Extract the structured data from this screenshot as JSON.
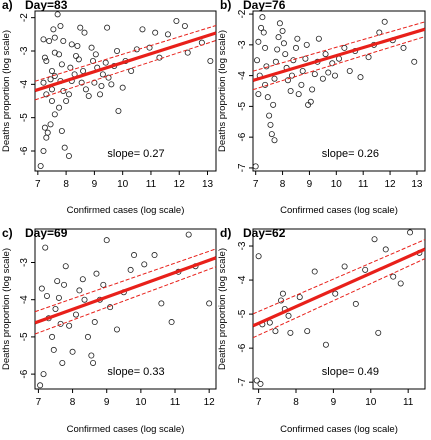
{
  "chart_data": [
    {
      "type": "scatter",
      "panel": "a)",
      "title": "Day=83",
      "xlabel": "Confirmed cases (log scale)",
      "ylabel": "Deaths proportion (log scale)",
      "xlim": [
        6.9,
        13.3
      ],
      "ylim": [
        -6.6,
        -1.8
      ],
      "xticks": [
        7,
        8,
        9,
        10,
        11,
        12,
        13
      ],
      "yticks": [
        -6,
        -5,
        -4,
        -3,
        -2
      ],
      "annotation": "slope=  0.27",
      "fit": {
        "intercept": -6.05,
        "slope": 0.27,
        "band": 0.28,
        "color": "#e8201a"
      },
      "points": [
        [
          7.1,
          -6.45
        ],
        [
          7.2,
          -6.0
        ],
        [
          7.3,
          -5.6
        ],
        [
          7.35,
          -5.45
        ],
        [
          7.25,
          -5.3
        ],
        [
          7.45,
          -5.2
        ],
        [
          7.6,
          -4.9
        ],
        [
          7.5,
          -4.5
        ],
        [
          7.3,
          -4.3
        ],
        [
          7.5,
          -4.15
        ],
        [
          7.2,
          -3.95
        ],
        [
          7.45,
          -3.85
        ],
        [
          7.5,
          -3.6
        ],
        [
          7.6,
          -3.75
        ],
        [
          7.3,
          -3.3
        ],
        [
          7.25,
          -3.2
        ],
        [
          7.6,
          -3.05
        ],
        [
          7.4,
          -2.7
        ],
        [
          7.2,
          -2.65
        ],
        [
          7.6,
          -2.6
        ],
        [
          7.55,
          -2.35
        ],
        [
          7.7,
          -1.9
        ],
        [
          7.8,
          -2.25
        ],
        [
          7.9,
          -2.7
        ],
        [
          7.75,
          -3.1
        ],
        [
          7.85,
          -3.4
        ],
        [
          7.8,
          -3.9
        ],
        [
          7.9,
          -4.2
        ],
        [
          8.0,
          -4.5
        ],
        [
          7.75,
          -4.7
        ],
        [
          7.85,
          -5.4
        ],
        [
          7.95,
          -5.9
        ],
        [
          8.1,
          -6.15
        ],
        [
          8.1,
          -4.3
        ],
        [
          8.2,
          -3.9
        ],
        [
          8.3,
          -3.7
        ],
        [
          8.15,
          -3.5
        ],
        [
          8.35,
          -3.15
        ],
        [
          8.2,
          -2.8
        ],
        [
          8.4,
          -2.85
        ],
        [
          8.5,
          -2.3
        ],
        [
          8.45,
          -3.25
        ],
        [
          8.6,
          -3.6
        ],
        [
          8.55,
          -3.95
        ],
        [
          8.7,
          -4.15
        ],
        [
          8.8,
          -4.35
        ],
        [
          8.65,
          -2.45
        ],
        [
          8.9,
          -2.9
        ],
        [
          8.95,
          -3.3
        ],
        [
          9.05,
          -3.1
        ],
        [
          9.1,
          -3.5
        ],
        [
          9.0,
          -3.95
        ],
        [
          9.2,
          -4.3
        ],
        [
          9.25,
          -4.05
        ],
        [
          9.3,
          -3.7
        ],
        [
          9.4,
          -3.35
        ],
        [
          9.45,
          -2.3
        ],
        [
          9.5,
          -3.8
        ],
        [
          9.6,
          -4.0
        ],
        [
          9.7,
          -3.45
        ],
        [
          9.8,
          -3.0
        ],
        [
          9.85,
          -4.8
        ],
        [
          10.0,
          -4.1
        ],
        [
          10.1,
          -3.3
        ],
        [
          10.3,
          -3.6
        ],
        [
          10.5,
          -2.95
        ],
        [
          10.7,
          -2.35
        ],
        [
          10.95,
          -2.9
        ],
        [
          11.15,
          -2.45
        ],
        [
          11.3,
          -3.2
        ],
        [
          11.6,
          -2.5
        ],
        [
          11.9,
          -2.1
        ],
        [
          12.2,
          -2.25
        ],
        [
          12.3,
          -3.05
        ],
        [
          12.8,
          -2.75
        ],
        [
          13.1,
          -3.3
        ]
      ]
    },
    {
      "type": "scatter",
      "panel": "b)",
      "title": "Day=76",
      "xlabel": "Confirmed cases (log scale)",
      "ylabel": "Deaths proportion (log scale)",
      "xlim": [
        6.9,
        13.3
      ],
      "ylim": [
        -7.1,
        -1.9
      ],
      "xticks": [
        7,
        8,
        9,
        10,
        11,
        12,
        13
      ],
      "yticks": [
        -7,
        -6,
        -5,
        -4,
        -3,
        -2
      ],
      "annotation": "slope=  0.26",
      "fit": {
        "intercept": -5.95,
        "slope": 0.26,
        "band": 0.3,
        "color": "#e8201a"
      },
      "points": [
        [
          7.0,
          -6.95
        ],
        [
          7.1,
          -4.6
        ],
        [
          7.15,
          -4.0
        ],
        [
          7.05,
          -3.5
        ],
        [
          7.1,
          -2.9
        ],
        [
          7.2,
          -2.45
        ],
        [
          7.25,
          -2.1
        ],
        [
          7.3,
          -2.6
        ],
        [
          7.35,
          -3.1
        ],
        [
          7.4,
          -3.7
        ],
        [
          7.35,
          -4.3
        ],
        [
          7.45,
          -4.7
        ],
        [
          7.5,
          -5.3
        ],
        [
          7.55,
          -5.6
        ],
        [
          7.6,
          -5.9
        ],
        [
          7.7,
          -6.1
        ],
        [
          7.65,
          -4.95
        ],
        [
          7.7,
          -4.1
        ],
        [
          7.75,
          -3.55
        ],
        [
          7.8,
          -3.15
        ],
        [
          7.85,
          -2.75
        ],
        [
          7.9,
          -2.3
        ],
        [
          8.0,
          -2.55
        ],
        [
          8.05,
          -2.95
        ],
        [
          8.1,
          -3.3
        ],
        [
          8.15,
          -3.75
        ],
        [
          8.2,
          -4.15
        ],
        [
          8.3,
          -4.5
        ],
        [
          8.35,
          -4.0
        ],
        [
          8.4,
          -3.5
        ],
        [
          8.5,
          -3.1
        ],
        [
          8.55,
          -2.8
        ],
        [
          8.6,
          -4.6
        ],
        [
          8.7,
          -4.3
        ],
        [
          8.75,
          -3.85
        ],
        [
          8.85,
          -3.45
        ],
        [
          8.9,
          -3.0
        ],
        [
          8.95,
          -4.95
        ],
        [
          9.05,
          -4.85
        ],
        [
          9.1,
          -4.45
        ],
        [
          9.2,
          -3.95
        ],
        [
          9.3,
          -3.55
        ],
        [
          9.35,
          -2.8
        ],
        [
          9.5,
          -4.1
        ],
        [
          9.6,
          -3.3
        ],
        [
          9.7,
          -3.9
        ],
        [
          9.85,
          -3.6
        ],
        [
          9.95,
          -4.0
        ],
        [
          10.1,
          -3.45
        ],
        [
          10.3,
          -3.1
        ],
        [
          10.5,
          -3.85
        ],
        [
          10.7,
          -3.2
        ],
        [
          10.9,
          -4.05
        ],
        [
          11.2,
          -3.4
        ],
        [
          11.4,
          -3.0
        ],
        [
          11.6,
          -2.6
        ],
        [
          11.8,
          -2.25
        ],
        [
          12.1,
          -2.85
        ],
        [
          12.5,
          -3.1
        ],
        [
          12.9,
          -3.55
        ]
      ]
    },
    {
      "type": "scatter",
      "panel": "c)",
      "title": "Day=69",
      "xlabel": "Confirmed cases (log scale)",
      "ylabel": "Deaths proportion (log scale)",
      "xlim": [
        6.9,
        12.2
      ],
      "ylim": [
        -6.4,
        -2.1
      ],
      "xticks": [
        7,
        8,
        9,
        10,
        11,
        12
      ],
      "yticks": [
        -6,
        -5,
        -4,
        -3
      ],
      "annotation": "slope=  0.33",
      "fit": {
        "intercept": -6.9,
        "slope": 0.33,
        "band": 0.3,
        "color": "#e8201a"
      },
      "points": [
        [
          7.05,
          -6.3
        ],
        [
          7.15,
          -6.0
        ],
        [
          7.1,
          -3.7
        ],
        [
          7.2,
          -2.6
        ],
        [
          7.25,
          -3.9
        ],
        [
          7.3,
          -4.5
        ],
        [
          7.4,
          -5.0
        ],
        [
          7.45,
          -5.35
        ],
        [
          7.5,
          -4.25
        ],
        [
          7.55,
          -3.5
        ],
        [
          7.6,
          -3.95
        ],
        [
          7.65,
          -4.65
        ],
        [
          7.7,
          -5.7
        ],
        [
          7.75,
          -3.6
        ],
        [
          7.8,
          -3.1
        ],
        [
          7.9,
          -4.7
        ],
        [
          8.0,
          -5.4
        ],
        [
          8.1,
          -4.4
        ],
        [
          8.2,
          -3.75
        ],
        [
          8.3,
          -3.45
        ],
        [
          8.35,
          -4.0
        ],
        [
          8.45,
          -5.0
        ],
        [
          8.55,
          -5.5
        ],
        [
          8.6,
          -5.7
        ],
        [
          8.65,
          -4.6
        ],
        [
          8.7,
          -3.3
        ],
        [
          8.8,
          -4.0
        ],
        [
          8.9,
          -3.6
        ],
        [
          9.0,
          -2.4
        ],
        [
          9.1,
          -4.2
        ],
        [
          9.3,
          -4.8
        ],
        [
          9.5,
          -3.8
        ],
        [
          9.7,
          -3.2
        ],
        [
          9.8,
          -2.8
        ],
        [
          10.1,
          -3.05
        ],
        [
          10.4,
          -2.8
        ],
        [
          10.6,
          -4.1
        ],
        [
          10.9,
          -4.6
        ],
        [
          11.1,
          -3.25
        ],
        [
          11.4,
          -2.25
        ],
        [
          11.6,
          -3.1
        ],
        [
          12.0,
          -4.1
        ]
      ]
    },
    {
      "type": "scatter",
      "panel": "d)",
      "title": "Day=62",
      "xlabel": "Confirmed cases (log scale)",
      "ylabel": "Deaths proportion (log scale)",
      "xlim": [
        6.85,
        11.45
      ],
      "ylim": [
        -7.2,
        -2.5
      ],
      "xticks": [
        7,
        8,
        9,
        10,
        11
      ],
      "yticks": [
        -7,
        -6,
        -5,
        -4,
        -3
      ],
      "annotation": "slope=  0.49",
      "fit": {
        "intercept": -8.7,
        "slope": 0.49,
        "band": 0.35,
        "color": "#e8201a"
      },
      "points": [
        [
          6.95,
          -6.95
        ],
        [
          7.05,
          -7.05
        ],
        [
          7.0,
          -3.3
        ],
        [
          7.1,
          -5.3
        ],
        [
          7.3,
          -5.25
        ],
        [
          7.45,
          -5.5
        ],
        [
          7.6,
          -4.6
        ],
        [
          7.7,
          -4.85
        ],
        [
          7.65,
          -4.4
        ],
        [
          7.8,
          -5.05
        ],
        [
          7.85,
          -5.55
        ],
        [
          8.1,
          -4.5
        ],
        [
          8.3,
          -5.5
        ],
        [
          8.5,
          -3.75
        ],
        [
          8.8,
          -5.9
        ],
        [
          9.05,
          -4.4
        ],
        [
          9.3,
          -3.6
        ],
        [
          9.6,
          -4.7
        ],
        [
          9.85,
          -3.7
        ],
        [
          10.1,
          -2.8
        ],
        [
          10.2,
          -5.55
        ],
        [
          10.4,
          -3.1
        ],
        [
          10.6,
          -3.9
        ],
        [
          10.8,
          -4.1
        ],
        [
          11.05,
          -2.6
        ],
        [
          11.3,
          -3.2
        ]
      ]
    }
  ]
}
